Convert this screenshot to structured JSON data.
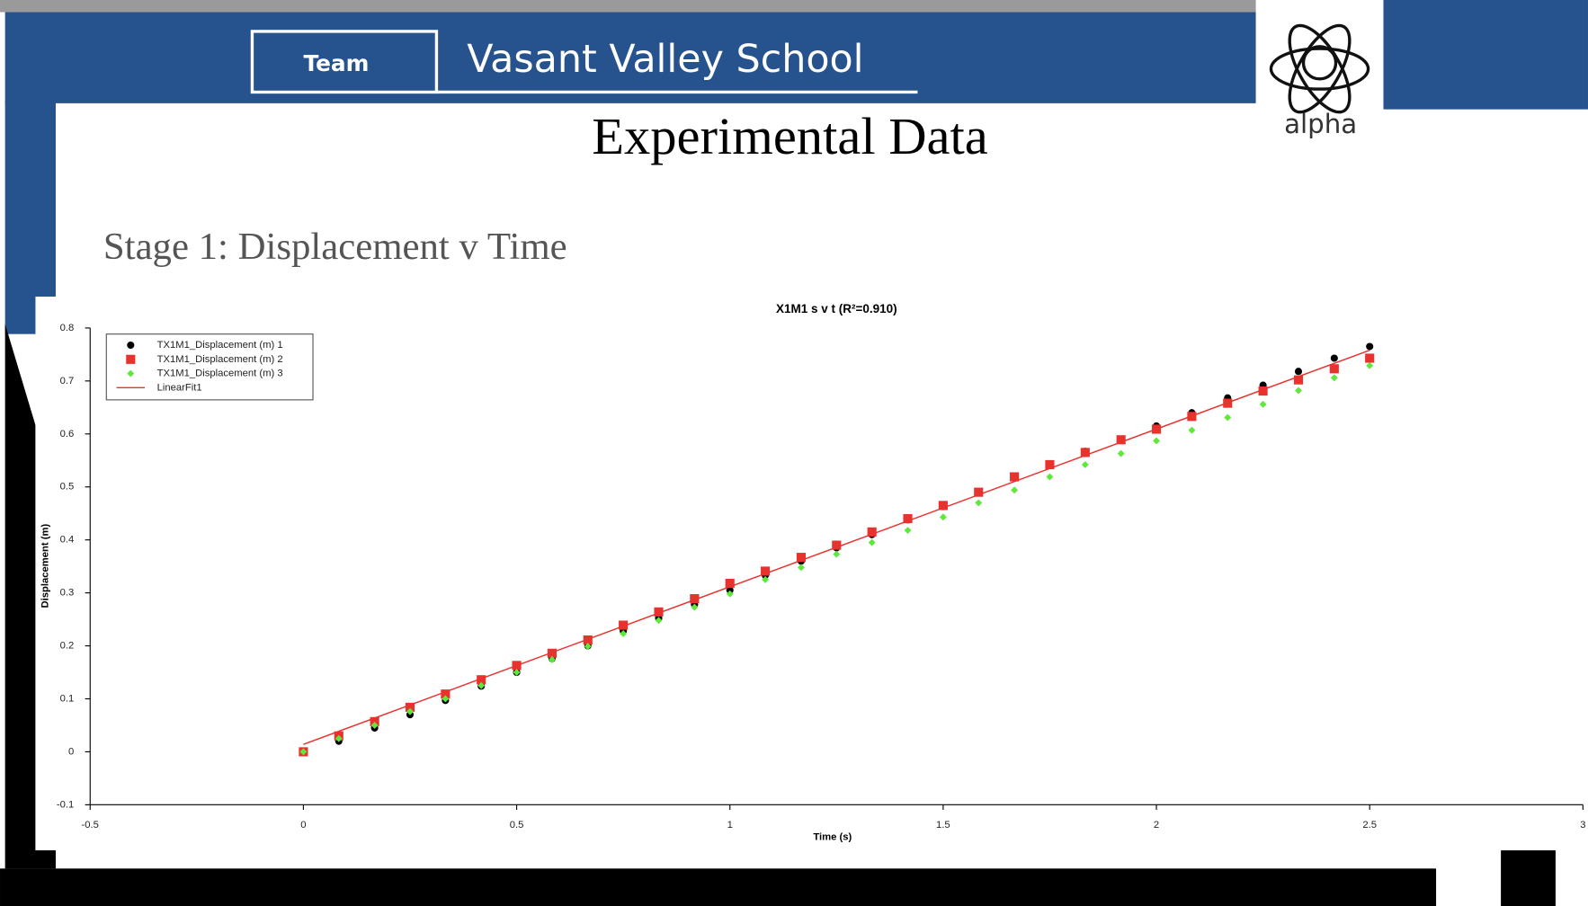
{
  "header": {
    "team": "Team",
    "school": "Vasant Valley School",
    "logo": "alpha"
  },
  "title": "Experimental Data",
  "subtitle": "Stage 1: Displacement v Time",
  "chart_data": {
    "type": "scatter",
    "title": "X1M1 s v t (R²=0.910)",
    "x_label": "Time (s)",
    "y_label": "Displacement (m)",
    "x": [
      0,
      0.083,
      0.167,
      0.25,
      0.333,
      0.417,
      0.5,
      0.583,
      0.667,
      0.75,
      0.833,
      0.917,
      1,
      1.083,
      1.167,
      1.25,
      1.333,
      1.417,
      1.5,
      1.583,
      1.667,
      1.75,
      1.833,
      1.917,
      2,
      2.083,
      2.167,
      2.25,
      2.333,
      2.417,
      2.5
    ],
    "series": [
      {
        "name": "TX1M1_Displacement (m) 1",
        "color": "#000000",
        "marker": "circle",
        "values": [
          0,
          0.02,
          0.045,
          0.07,
          0.097,
          0.124,
          0.15,
          0.176,
          0.2,
          0.228,
          0.252,
          0.278,
          0.305,
          0.333,
          0.36,
          0.385,
          0.41,
          0.438,
          0.463,
          0.49,
          0.517,
          0.542,
          0.567,
          0.589,
          0.615,
          0.64,
          0.668,
          0.692,
          0.718,
          0.743,
          0.765
        ]
      },
      {
        "name": "TX1M1_Displacement (m) 2",
        "color": "#e8322e",
        "marker": "square",
        "values": [
          0,
          0.03,
          0.057,
          0.084,
          0.109,
          0.136,
          0.163,
          0.186,
          0.211,
          0.239,
          0.264,
          0.289,
          0.318,
          0.341,
          0.367,
          0.39,
          0.415,
          0.44,
          0.465,
          0.49,
          0.519,
          0.542,
          0.565,
          0.589,
          0.609,
          0.633,
          0.658,
          0.681,
          0.702,
          0.723,
          0.743
        ]
      },
      {
        "name": "TX1M1_Displacement (m) 3",
        "color": "#5ee83a",
        "marker": "diamond",
        "values": [
          0,
          0.025,
          0.05,
          0.076,
          0.1,
          0.125,
          0.15,
          0.174,
          0.199,
          0.223,
          0.248,
          0.273,
          0.298,
          0.325,
          0.348,
          0.373,
          0.395,
          0.418,
          0.443,
          0.47,
          0.494,
          0.519,
          0.542,
          0.563,
          0.587,
          0.607,
          0.631,
          0.656,
          0.682,
          0.706,
          0.729
        ]
      },
      {
        "name": "LinearFit1",
        "color": "#e8322e",
        "marker": "line",
        "x": [
          0,
          2.5
        ],
        "values": [
          0.014,
          0.758
        ]
      }
    ],
    "xlim": [
      -0.5,
      3
    ],
    "xticks": [
      -0.5,
      0,
      0.5,
      1,
      1.5,
      2,
      2.5,
      3
    ],
    "ylim": [
      -0.1,
      0.8
    ],
    "yticks": [
      -0.1,
      0,
      0.1,
      0.2,
      0.3,
      0.4,
      0.5,
      0.6,
      0.7,
      0.8
    ],
    "legend": "upper-left"
  }
}
